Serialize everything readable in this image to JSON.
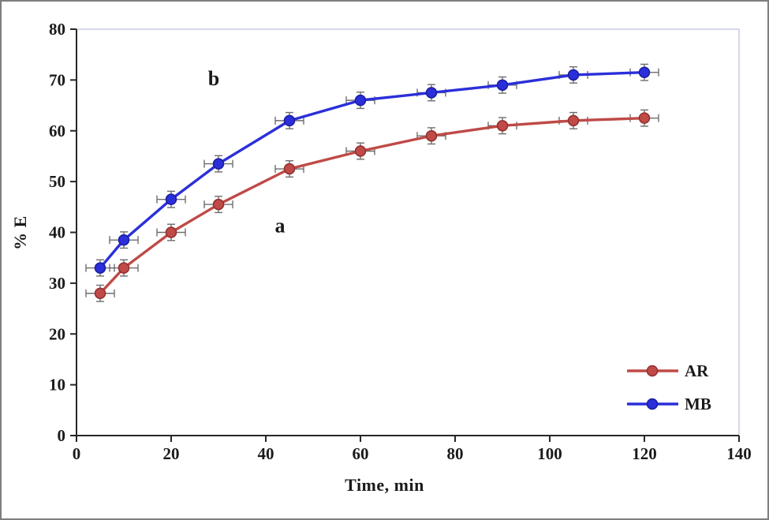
{
  "chart_data": {
    "type": "line",
    "title": "",
    "xlabel": "Time, min",
    "ylabel": "% E",
    "xlim": [
      0,
      140
    ],
    "ylim": [
      0,
      80
    ],
    "xticks": [
      0,
      20,
      40,
      60,
      80,
      100,
      120,
      140
    ],
    "yticks": [
      0,
      10,
      20,
      30,
      40,
      50,
      60,
      70,
      80
    ],
    "grid": false,
    "x": [
      5,
      10,
      20,
      30,
      45,
      60,
      75,
      90,
      105,
      120
    ],
    "series": [
      {
        "name": "AR",
        "color": "#bf4a47",
        "edge_color": "#8f2f2d",
        "values": [
          28,
          33,
          40,
          45.5,
          52.5,
          56,
          59,
          61,
          62,
          62.5
        ]
      },
      {
        "name": "MB",
        "color": "#2b2fd9",
        "edge_color": "#1a1d9e",
        "values": [
          33,
          38.5,
          46.5,
          53.5,
          62,
          66,
          67.5,
          69,
          71,
          71.5
        ]
      }
    ],
    "error_y": 1.6,
    "error_x": 3,
    "error_color": "#6e6e6e",
    "annotations": [
      {
        "text": "a",
        "x": 43,
        "y": 40
      },
      {
        "text": "b",
        "x": 29,
        "y": 69
      }
    ],
    "legend": {
      "position": "bottom-right",
      "entries": [
        "AR",
        "MB"
      ]
    },
    "axis_color": "#262626",
    "plot_border_color": "#aab4d4"
  }
}
